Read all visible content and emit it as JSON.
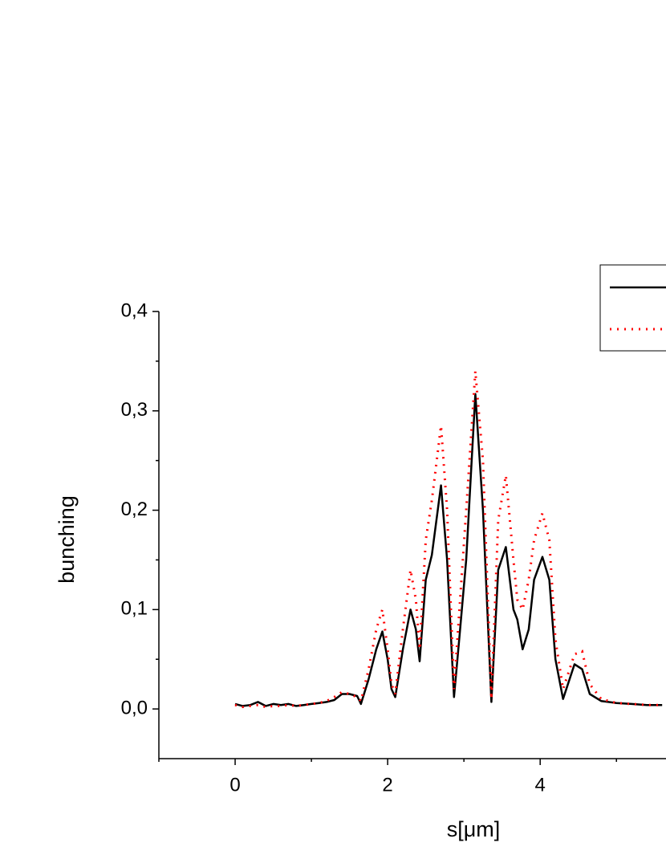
{
  "chart_data": {
    "type": "line",
    "xlabel": "s[μm]",
    "ylabel": "bunching",
    "x": [
      0,
      0.1,
      0.2,
      0.3,
      0.4,
      0.5,
      0.6,
      0.7,
      0.8,
      0.9,
      1.0,
      1.1,
      1.2,
      1.3,
      1.4,
      1.5,
      1.6,
      1.65,
      1.75,
      1.85,
      1.93,
      2.0,
      2.05,
      2.1,
      2.2,
      2.3,
      2.37,
      2.42,
      2.5,
      2.58,
      2.7,
      2.78,
      2.87,
      2.95,
      3.03,
      3.15,
      3.25,
      3.36,
      3.45,
      3.55,
      3.65,
      3.7,
      3.77,
      3.85,
      3.92,
      4.03,
      4.12,
      4.2,
      4.3,
      4.45,
      4.55,
      4.65,
      4.8,
      5.0,
      5.2,
      5.4,
      5.6
    ],
    "series": [
      {
        "color": "#000000",
        "style": "solid",
        "values": [
          0.005,
          0.003,
          0.004,
          0.007,
          0.003,
          0.005,
          0.004,
          0.005,
          0.003,
          0.004,
          0.005,
          0.006,
          0.007,
          0.009,
          0.015,
          0.015,
          0.013,
          0.005,
          0.03,
          0.06,
          0.078,
          0.05,
          0.02,
          0.012,
          0.06,
          0.1,
          0.08,
          0.048,
          0.13,
          0.155,
          0.225,
          0.15,
          0.012,
          0.08,
          0.15,
          0.317,
          0.2,
          0.007,
          0.14,
          0.163,
          0.1,
          0.09,
          0.06,
          0.08,
          0.13,
          0.153,
          0.13,
          0.05,
          0.01,
          0.045,
          0.04,
          0.015,
          0.008,
          0.006,
          0.005,
          0.004,
          0.004
        ]
      },
      {
        "color": "#ff0000",
        "style": "dotted",
        "values": [
          0.004,
          0.002,
          0.003,
          0.004,
          0.002,
          0.003,
          0.003,
          0.004,
          0.003,
          0.004,
          0.005,
          0.006,
          0.008,
          0.012,
          0.017,
          0.015,
          0.012,
          0.008,
          0.04,
          0.08,
          0.1,
          0.06,
          0.025,
          0.015,
          0.08,
          0.14,
          0.11,
          0.06,
          0.17,
          0.21,
          0.285,
          0.2,
          0.02,
          0.11,
          0.2,
          0.34,
          0.25,
          0.01,
          0.19,
          0.235,
          0.15,
          0.11,
          0.1,
          0.13,
          0.17,
          0.197,
          0.17,
          0.07,
          0.02,
          0.055,
          0.058,
          0.025,
          0.01,
          0.006,
          0.005,
          0.004,
          0.004
        ]
      }
    ],
    "xlim": [
      -1,
      5.65
    ],
    "xticks": [
      0,
      2,
      4
    ],
    "xminor_ticks": [
      -1,
      1,
      3,
      5
    ],
    "ylim": [
      -0.05,
      0.4
    ],
    "yticks": [
      {
        "value": 0,
        "label": "0,0"
      },
      {
        "value": 0.1,
        "label": "0,1"
      },
      {
        "value": 0.2,
        "label": "0,2"
      },
      {
        "value": 0.3,
        "label": "0,3"
      },
      {
        "value": 0.4,
        "label": "0,4"
      }
    ],
    "yminor_ticks": [
      0.05,
      0.15,
      0.25,
      0.35
    ],
    "grid": false,
    "legend": "upper right"
  }
}
